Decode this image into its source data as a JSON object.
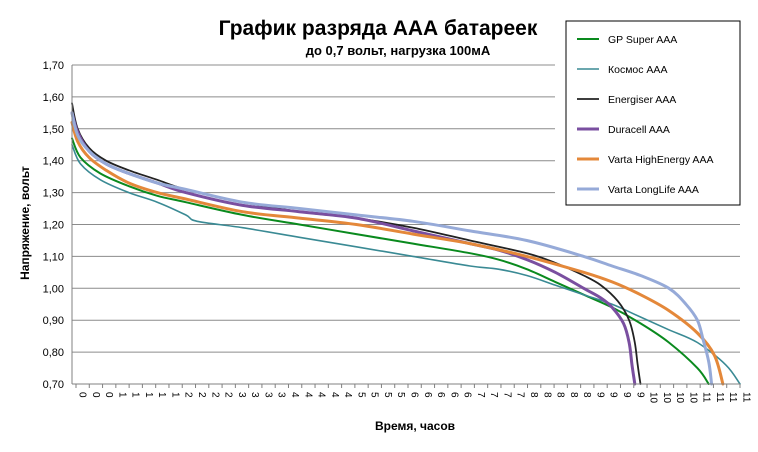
{
  "chart_data": {
    "type": "line",
    "title": "График разряда ААА батареек",
    "subtitle": "до 0,7 вольт, нагрузка 100мА",
    "xlabel": "Время, часов",
    "ylabel": "Напряжение, вольт",
    "ylim": [
      0.7,
      1.7
    ],
    "xlim": [
      0,
      11.75
    ],
    "y_ticks": [
      "0,70",
      "0,80",
      "0,90",
      "1,00",
      "1,10",
      "1,20",
      "1,30",
      "1,40",
      "1,50",
      "1,60",
      "1,70"
    ],
    "x_ticks": [
      "0",
      "0",
      "0",
      "1",
      "1",
      "1",
      "1",
      "1",
      "2",
      "2",
      "2",
      "2",
      "3",
      "3",
      "3",
      "3",
      "4",
      "4",
      "4",
      "4",
      "4",
      "5",
      "5",
      "5",
      "5",
      "6",
      "6",
      "6",
      "6",
      "6",
      "7",
      "7",
      "7",
      "7",
      "8",
      "8",
      "8",
      "8",
      "8",
      "9",
      "9",
      "9",
      "9",
      "10",
      "10",
      "10",
      "10",
      "11",
      "11",
      "11",
      "11"
    ],
    "grid": true,
    "legend_position": "top-right",
    "series": [
      {
        "name": "GP Super AAA",
        "color": "#0a8a1e",
        "x": [
          0,
          0.15,
          0.5,
          1.0,
          1.5,
          2.0,
          3.0,
          4.0,
          5.0,
          6.0,
          7.0,
          7.5,
          8.0,
          8.5,
          9.0,
          9.5,
          10.0,
          10.5,
          11.0,
          11.2
        ],
        "y": [
          1.47,
          1.41,
          1.36,
          1.32,
          1.29,
          1.27,
          1.23,
          1.2,
          1.17,
          1.14,
          1.11,
          1.09,
          1.06,
          1.02,
          0.98,
          0.94,
          0.89,
          0.83,
          0.75,
          0.7
        ]
      },
      {
        "name": "Космос AAA",
        "color": "#3a8a94",
        "x": [
          0,
          0.15,
          0.5,
          1.0,
          1.5,
          2.0,
          2.2,
          3.0,
          4.0,
          5.0,
          6.0,
          7.0,
          7.5,
          8.0,
          8.5,
          9.0,
          9.5,
          10.0,
          10.5,
          11.0,
          11.5,
          11.75
        ],
        "y": [
          1.45,
          1.39,
          1.34,
          1.3,
          1.27,
          1.23,
          1.21,
          1.19,
          1.16,
          1.13,
          1.1,
          1.07,
          1.06,
          1.04,
          1.01,
          0.98,
          0.95,
          0.91,
          0.87,
          0.83,
          0.76,
          0.7
        ]
      },
      {
        "name": "Energiser AAA",
        "color": "#222222",
        "x": [
          0,
          0.1,
          0.3,
          0.6,
          1.0,
          1.5,
          2.0,
          3.0,
          4.0,
          5.0,
          6.0,
          7.0,
          8.0,
          8.5,
          9.0,
          9.3,
          9.6,
          9.8,
          9.9,
          9.95,
          10.0
        ],
        "y": [
          1.58,
          1.5,
          1.44,
          1.4,
          1.37,
          1.34,
          1.31,
          1.27,
          1.24,
          1.22,
          1.19,
          1.15,
          1.11,
          1.08,
          1.04,
          1.01,
          0.96,
          0.9,
          0.83,
          0.76,
          0.7
        ]
      },
      {
        "name": "Duracell AAA",
        "color": "#7a4fa0",
        "x": [
          0,
          0.1,
          0.3,
          0.6,
          1.0,
          1.5,
          2.0,
          3.0,
          4.0,
          5.0,
          6.0,
          7.0,
          7.5,
          8.0,
          8.5,
          9.0,
          9.3,
          9.5,
          9.7,
          9.8,
          9.85,
          9.9
        ],
        "y": [
          1.55,
          1.49,
          1.43,
          1.39,
          1.36,
          1.33,
          1.3,
          1.26,
          1.24,
          1.22,
          1.18,
          1.14,
          1.12,
          1.09,
          1.05,
          1.0,
          0.97,
          0.94,
          0.89,
          0.83,
          0.76,
          0.7
        ]
      },
      {
        "name": "Varta HighEnergy AAA",
        "color": "#e4883a",
        "x": [
          0,
          0.1,
          0.3,
          0.6,
          1.0,
          1.5,
          2.0,
          3.0,
          4.0,
          5.0,
          6.0,
          7.0,
          8.0,
          9.0,
          9.5,
          10.0,
          10.5,
          11.0,
          11.3,
          11.45
        ],
        "y": [
          1.52,
          1.46,
          1.41,
          1.37,
          1.33,
          1.3,
          1.28,
          1.24,
          1.22,
          1.2,
          1.17,
          1.14,
          1.1,
          1.05,
          1.02,
          0.98,
          0.93,
          0.86,
          0.79,
          0.7
        ]
      },
      {
        "name": "Varta LongLife AAA",
        "color": "#96aad8",
        "x": [
          0,
          0.1,
          0.3,
          0.6,
          1.0,
          1.5,
          2.0,
          3.0,
          4.0,
          5.0,
          6.0,
          7.0,
          8.0,
          9.0,
          9.5,
          10.0,
          10.5,
          10.8,
          11.0,
          11.1,
          11.2,
          11.25
        ],
        "y": [
          1.55,
          1.48,
          1.43,
          1.39,
          1.36,
          1.33,
          1.31,
          1.27,
          1.25,
          1.23,
          1.21,
          1.18,
          1.15,
          1.1,
          1.07,
          1.04,
          1.0,
          0.95,
          0.9,
          0.84,
          0.77,
          0.7
        ]
      }
    ]
  }
}
